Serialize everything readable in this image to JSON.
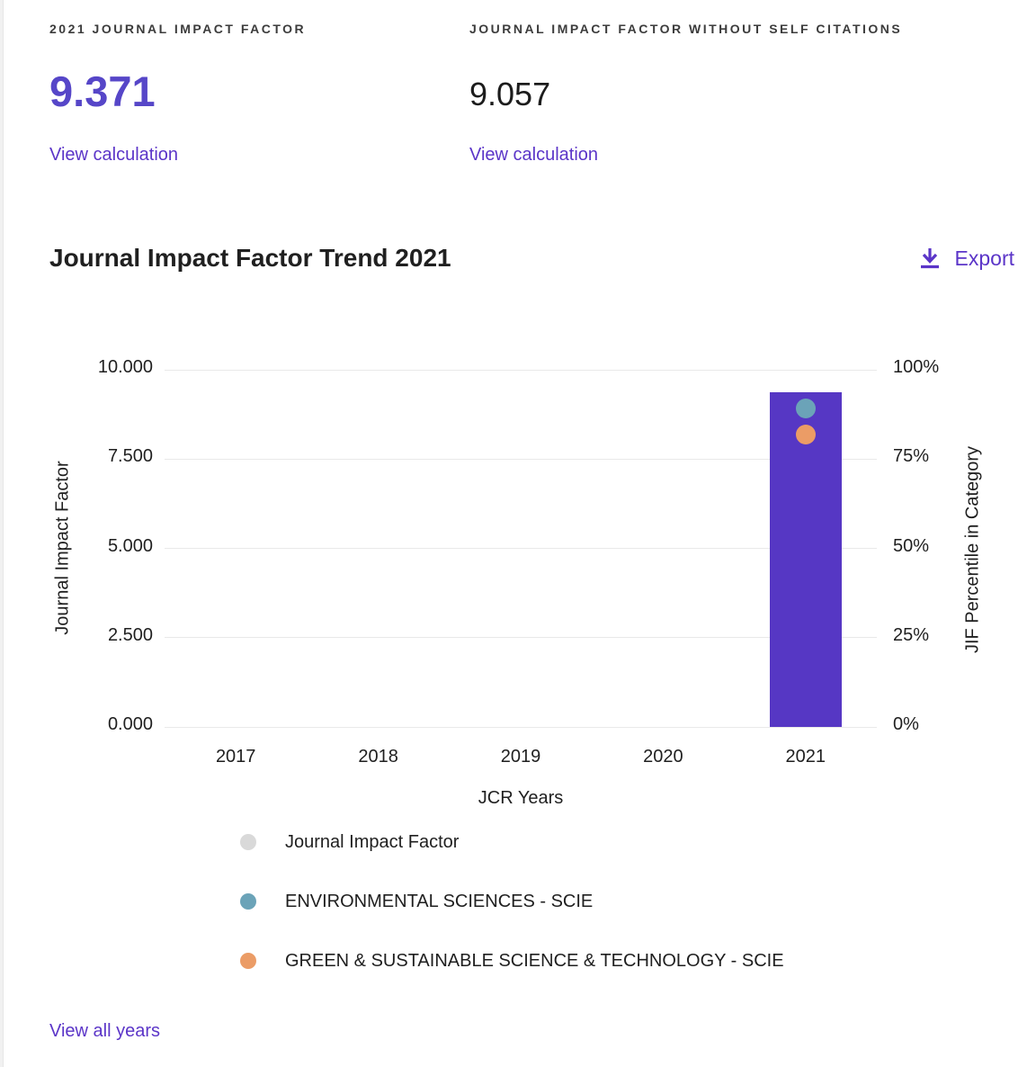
{
  "colors": {
    "accent_link": "#5b35c8",
    "metric_value_purple": "#5646c8",
    "bar_purple": "#5637c4",
    "gridline": "#e9e9e9"
  },
  "metrics": [
    {
      "label": "2021 JOURNAL IMPACT FACTOR",
      "value": "9.371",
      "link": "View calculation"
    },
    {
      "label": "JOURNAL IMPACT FACTOR WITHOUT SELF CITATIONS",
      "value": "9.057",
      "link": "View calculation"
    }
  ],
  "trend": {
    "title": "Journal Impact Factor Trend 2021",
    "export_label": "Export",
    "view_all_label": "View all years"
  },
  "chart_data": {
    "type": "bar",
    "title": "Journal Impact Factor Trend 2021",
    "xlabel": "JCR Years",
    "ylabel_left": "Journal Impact Factor",
    "ylabel_right": "JIF Percentile in Category",
    "categories": [
      "2017",
      "2018",
      "2019",
      "2020",
      "2021"
    ],
    "left_axis_ticks": [
      "10.000",
      "7.500",
      "5.000",
      "2.500",
      "0.000"
    ],
    "right_axis_ticks": [
      "100%",
      "75%",
      "50%",
      "25%",
      "0%"
    ],
    "ylim_left": [
      0,
      10
    ],
    "ylim_right": [
      0,
      100
    ],
    "grid": true,
    "bar_series": {
      "name": "Journal Impact Factor",
      "color": "#5637c4",
      "values": [
        null,
        null,
        null,
        null,
        9.371
      ]
    },
    "point_series": [
      {
        "name": "ENVIRONMENTAL SCIENCES - SCIE",
        "color": "#6ba3b8",
        "axis": "right",
        "values": [
          null,
          null,
          null,
          null,
          89.2
        ]
      },
      {
        "name": "GREEN & SUSTAINABLE SCIENCE & TECHNOLOGY - SCIE",
        "color": "#eb9c66",
        "axis": "right",
        "values": [
          null,
          null,
          null,
          null,
          81.9
        ]
      }
    ],
    "legend": [
      {
        "label": "Journal Impact Factor",
        "color": "#d9d9d9"
      },
      {
        "label": "ENVIRONMENTAL SCIENCES - SCIE",
        "color": "#6ba3b8"
      },
      {
        "label": "GREEN & SUSTAINABLE SCIENCE & TECHNOLOGY - SCIE",
        "color": "#eb9c66"
      }
    ],
    "legend_position": "bottom"
  }
}
